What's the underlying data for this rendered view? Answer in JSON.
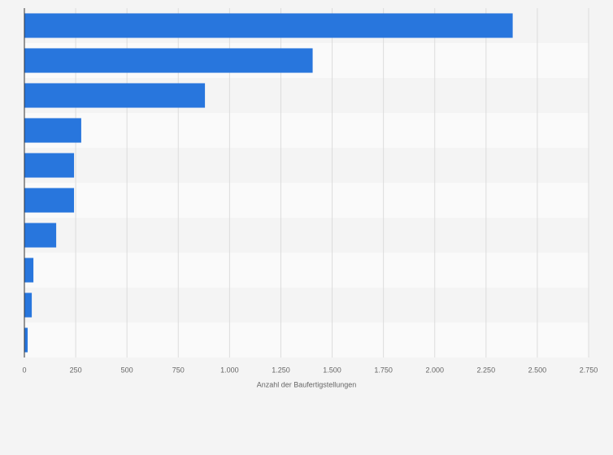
{
  "chart_data": {
    "type": "hbar",
    "x_label": "Anzahl der Baufertigstellungen",
    "categories": [
      null,
      null,
      null,
      null,
      null,
      null,
      null,
      null,
      null,
      null
    ],
    "values": [
      2380,
      1405,
      880,
      277,
      242,
      242,
      155,
      44,
      36,
      16
    ],
    "color": "#2876dd",
    "xlim": [
      0,
      2750
    ],
    "xticks": [
      0,
      250,
      500,
      750,
      {
        "value": 1000,
        "label": "1.000"
      },
      {
        "value": 1250,
        "label": "1.250"
      },
      {
        "value": 1500,
        "label": "1.500"
      },
      {
        "value": 1750,
        "label": "1.750"
      },
      {
        "value": 2000,
        "label": "2.000"
      },
      {
        "value": 2250,
        "label": "2.250"
      },
      {
        "value": 2500,
        "label": "2.500"
      },
      {
        "value": 2750,
        "label": "2.750"
      }
    ],
    "grid": true
  }
}
